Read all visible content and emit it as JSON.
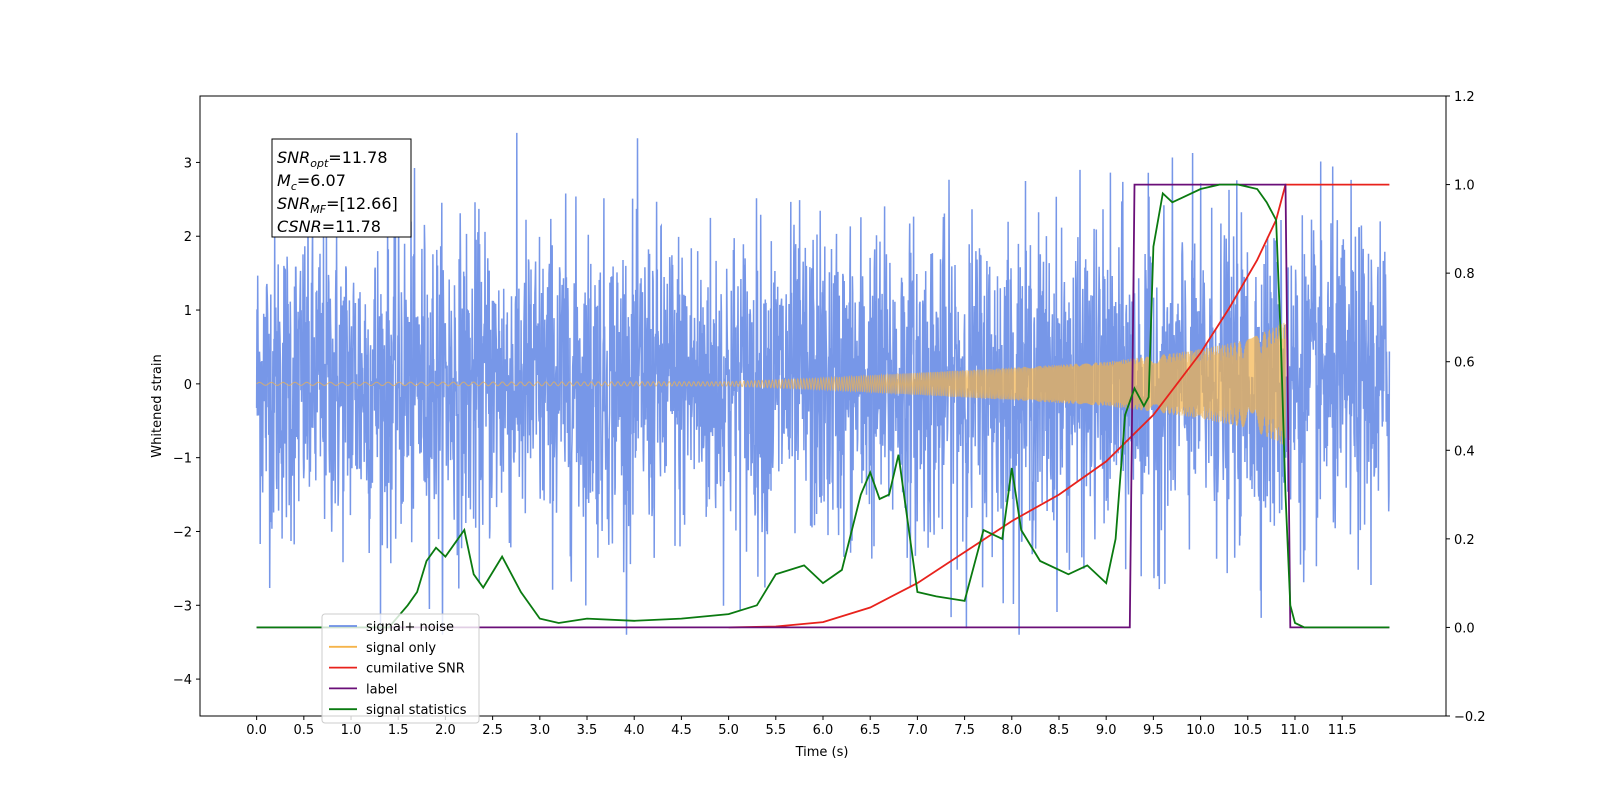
{
  "chart_data": {
    "type": "line",
    "xlabel": "Time (s)",
    "ylabel": "Whitened strain",
    "xlim": [
      -0.6,
      12.6
    ],
    "ylim": [
      -4.5,
      3.9
    ],
    "y2lim": [
      -0.2,
      1.2
    ],
    "xticks": [
      "0.0",
      "0.5",
      "1.0",
      "1.5",
      "2.0",
      "2.5",
      "3.0",
      "3.5",
      "4.0",
      "4.5",
      "5.0",
      "5.5",
      "6.0",
      "6.5",
      "7.0",
      "7.5",
      "8.0",
      "8.5",
      "9.0",
      "9.5",
      "10.0",
      "10.5",
      "11.0",
      "11.5"
    ],
    "yticks": [
      "3",
      "2",
      "1",
      "0",
      "−1",
      "−2",
      "−3",
      "−4"
    ],
    "y2ticks": [
      "1.2",
      "1.0",
      "0.8",
      "0.6",
      "0.4",
      "0.2",
      "0.0",
      "−0.2"
    ],
    "grid": false,
    "legend_position": "lower-left",
    "annotation": [
      {
        "name": "SNR",
        "sub": "opt",
        "value": "=11.78"
      },
      {
        "name": "M",
        "sub": "c",
        "value": "=6.07"
      },
      {
        "name": "SNR",
        "sub": "MF",
        "value": "=[12.66]"
      },
      {
        "name": "CSNR",
        "sub": "",
        "value": "=11.78"
      }
    ],
    "series": [
      {
        "name": "signal+ noise",
        "axis": "left",
        "color": "#6b8ee6",
        "style": "dense noise",
        "x_range": [
          0,
          12
        ],
        "typical_amplitude": 1.7,
        "max": 3.58,
        "min": -4.1
      },
      {
        "name": "signal only",
        "axis": "left",
        "color": "#f5b44a",
        "style": "chirp",
        "x_range": [
          0,
          10.9
        ],
        "envelope_x": [
          0,
          5.0,
          6.0,
          7.0,
          8.0,
          9.0,
          9.5,
          10.0,
          10.5,
          10.8,
          10.9
        ],
        "envelope_y": [
          0.02,
          0.03,
          0.08,
          0.15,
          0.22,
          0.3,
          0.38,
          0.47,
          0.6,
          0.78,
          0.85
        ]
      },
      {
        "name": "cumilative SNR",
        "axis": "right",
        "color": "#e8221c",
        "x": [
          5.0,
          5.5,
          6.0,
          6.5,
          7.0,
          7.5,
          8.0,
          8.5,
          9.0,
          9.5,
          10.0,
          10.3,
          10.6,
          10.8,
          10.9,
          11.0,
          11.5,
          12.0
        ],
        "y": [
          0.0,
          0.002,
          0.012,
          0.045,
          0.1,
          0.17,
          0.24,
          0.3,
          0.375,
          0.48,
          0.62,
          0.72,
          0.83,
          0.92,
          1.0,
          1.0,
          1.0,
          1.0
        ]
      },
      {
        "name": "label",
        "axis": "right",
        "color": "#6a0f78",
        "x": [
          0,
          9.25,
          9.3,
          10.9,
          10.95,
          12.0
        ],
        "y": [
          0,
          0,
          1,
          1,
          0,
          0
        ]
      },
      {
        "name": "signal statistics",
        "axis": "right",
        "color": "#0a7a10",
        "x": [
          0,
          1.4,
          1.6,
          1.7,
          1.8,
          1.9,
          2.0,
          2.2,
          2.3,
          2.4,
          2.6,
          2.8,
          3.0,
          3.2,
          3.5,
          4.0,
          4.5,
          5.0,
          5.3,
          5.5,
          5.8,
          6.0,
          6.2,
          6.4,
          6.5,
          6.6,
          6.7,
          6.8,
          7.0,
          7.2,
          7.5,
          7.7,
          7.9,
          8.0,
          8.1,
          8.3,
          8.6,
          8.8,
          9.0,
          9.1,
          9.2,
          9.3,
          9.4,
          9.45,
          9.5,
          9.6,
          9.7,
          9.8,
          10.0,
          10.2,
          10.4,
          10.6,
          10.7,
          10.8,
          10.85,
          10.9,
          10.95,
          11.0,
          11.1,
          12.0
        ],
        "y": [
          0,
          0,
          0.05,
          0.08,
          0.15,
          0.18,
          0.16,
          0.22,
          0.12,
          0.09,
          0.16,
          0.08,
          0.02,
          0.01,
          0.02,
          0.015,
          0.02,
          0.03,
          0.05,
          0.12,
          0.14,
          0.1,
          0.13,
          0.3,
          0.35,
          0.29,
          0.3,
          0.39,
          0.08,
          0.07,
          0.06,
          0.22,
          0.2,
          0.36,
          0.22,
          0.15,
          0.12,
          0.14,
          0.1,
          0.2,
          0.48,
          0.54,
          0.5,
          0.52,
          0.86,
          0.98,
          0.96,
          0.97,
          0.99,
          1.0,
          1.0,
          0.99,
          0.96,
          0.92,
          0.65,
          0.3,
          0.05,
          0.01,
          0.0,
          0.0
        ]
      }
    ]
  }
}
